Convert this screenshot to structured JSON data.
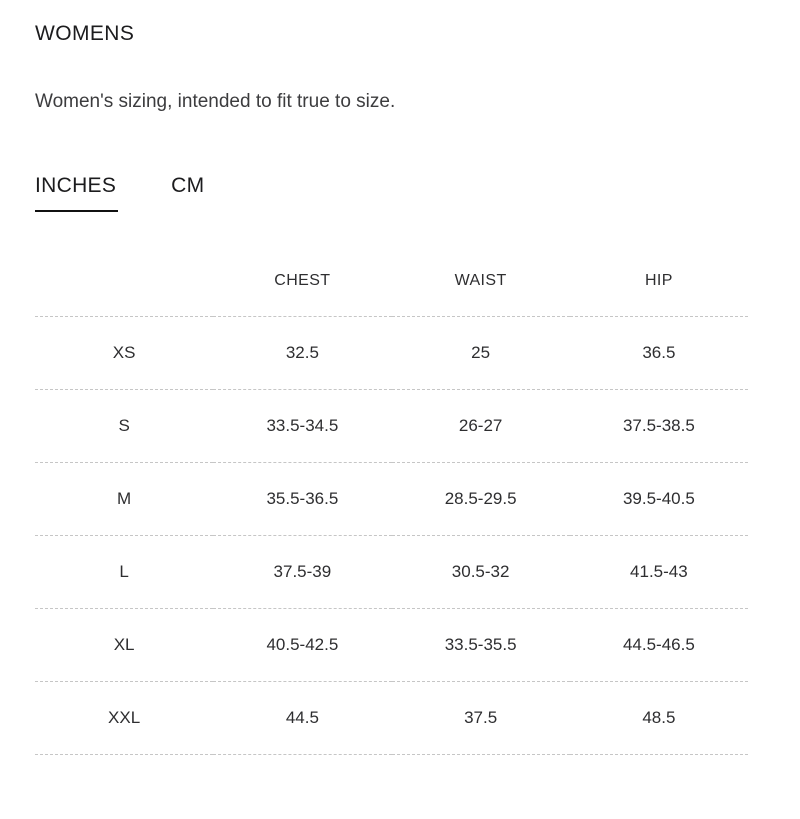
{
  "header": {
    "title": "WOMENS",
    "subtitle": "Women's sizing, intended to fit true to size."
  },
  "tabs": [
    {
      "label": "INCHES",
      "active": true
    },
    {
      "label": "CM",
      "active": false
    }
  ],
  "table": {
    "columns": [
      "",
      "CHEST",
      "WAIST",
      "HIP"
    ],
    "rows": [
      {
        "size": "XS",
        "chest": "32.5",
        "waist": "25",
        "hip": "36.5"
      },
      {
        "size": "S",
        "chest": "33.5-34.5",
        "waist": "26-27",
        "hip": "37.5-38.5"
      },
      {
        "size": "M",
        "chest": "35.5-36.5",
        "waist": "28.5-29.5",
        "hip": "39.5-40.5"
      },
      {
        "size": "L",
        "chest": "37.5-39",
        "waist": "30.5-32",
        "hip": "41.5-43"
      },
      {
        "size": "XL",
        "chest": "40.5-42.5",
        "waist": "33.5-35.5",
        "hip": "44.5-46.5"
      },
      {
        "size": "XXL",
        "chest": "44.5",
        "waist": "37.5",
        "hip": "48.5"
      }
    ]
  },
  "colors": {
    "heading_text": "#1c1c1e",
    "body_text": "#3c3c3e",
    "table_text": "#2e2e30",
    "tab_underline": "#111111",
    "row_divider": "#c6c6c6",
    "background": "#ffffff"
  }
}
